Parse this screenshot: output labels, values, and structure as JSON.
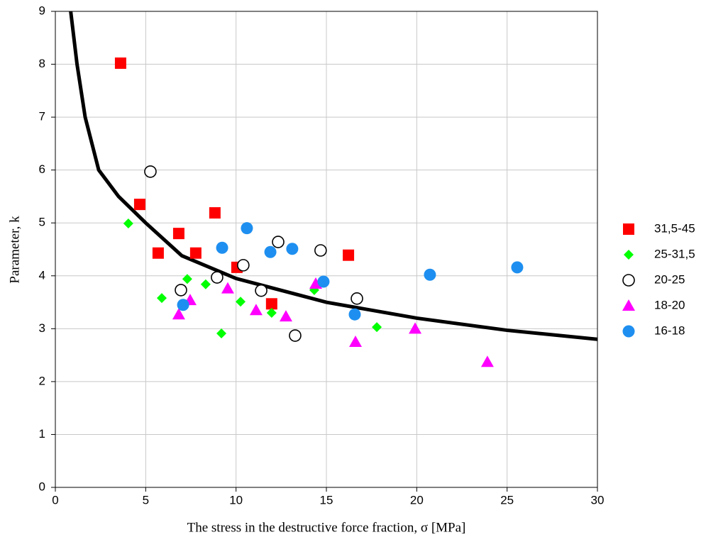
{
  "chart_data": {
    "type": "scatter",
    "x_label": "The stress in the destructive force fraction,  σ [MPa]",
    "y_label": "Parameter, k",
    "xlim": [
      0,
      30
    ],
    "xticks": [
      0,
      5,
      10,
      15,
      20,
      25,
      30
    ],
    "ylim": [
      0,
      9
    ],
    "yticks": [
      0,
      1,
      2,
      3,
      4,
      5,
      6,
      7,
      8,
      9
    ],
    "grid": true,
    "legend": "right",
    "series": [
      {
        "name": "31,5-45",
        "color": "#ff0000",
        "marker": "square",
        "x": [
          3.61,
          4.67,
          6.83,
          5.69,
          7.77,
          8.83,
          10.05,
          11.97,
          16.22
        ],
        "values": [
          8.02,
          5.35,
          4.8,
          4.43,
          4.43,
          5.19,
          4.16,
          3.47,
          4.39
        ]
      },
      {
        "name": "25-31,5",
        "color": "#00ff00",
        "marker": "diamond",
        "x": [
          4.04,
          5.89,
          7.3,
          8.32,
          9.19,
          10.25,
          11.97,
          14.33,
          17.79
        ],
        "values": [
          4.99,
          3.58,
          3.94,
          3.84,
          2.91,
          3.51,
          3.3,
          3.73,
          3.03
        ]
      },
      {
        "name": "20-25",
        "color": "#000000",
        "marker": "open-circle",
        "x": [
          5.26,
          6.95,
          8.95,
          10.4,
          12.33,
          11.39,
          13.27,
          14.68,
          16.69
        ],
        "values": [
          5.97,
          3.73,
          3.97,
          4.2,
          4.64,
          3.72,
          2.87,
          4.48,
          3.57
        ]
      },
      {
        "name": "18-20",
        "color": "#ff00ff",
        "marker": "triangle",
        "x": [
          6.83,
          7.46,
          9.54,
          11.11,
          12.76,
          14.41,
          16.61,
          19.91,
          23.91
        ],
        "values": [
          3.27,
          3.54,
          3.76,
          3.35,
          3.23,
          3.85,
          2.75,
          3.0,
          2.37
        ]
      },
      {
        "name": "16-18",
        "color": "#1e8ff0",
        "marker": "circle",
        "x": [
          10.6,
          9.23,
          11.9,
          13.11,
          14.84,
          7.07,
          16.57,
          20.73,
          25.56
        ],
        "values": [
          4.9,
          4.53,
          4.45,
          4.51,
          3.89,
          3.45,
          3.27,
          4.02,
          4.16
        ]
      }
    ],
    "curve": {
      "color": "#000000",
      "x": [
        0.85,
        1.2,
        1.65,
        2.4,
        3.5,
        5,
        7,
        10,
        15,
        20,
        25,
        30
      ],
      "y": [
        9,
        8,
        7,
        6,
        5.5,
        5.0,
        4.38,
        3.95,
        3.5,
        3.2,
        2.97,
        2.8
      ]
    }
  }
}
